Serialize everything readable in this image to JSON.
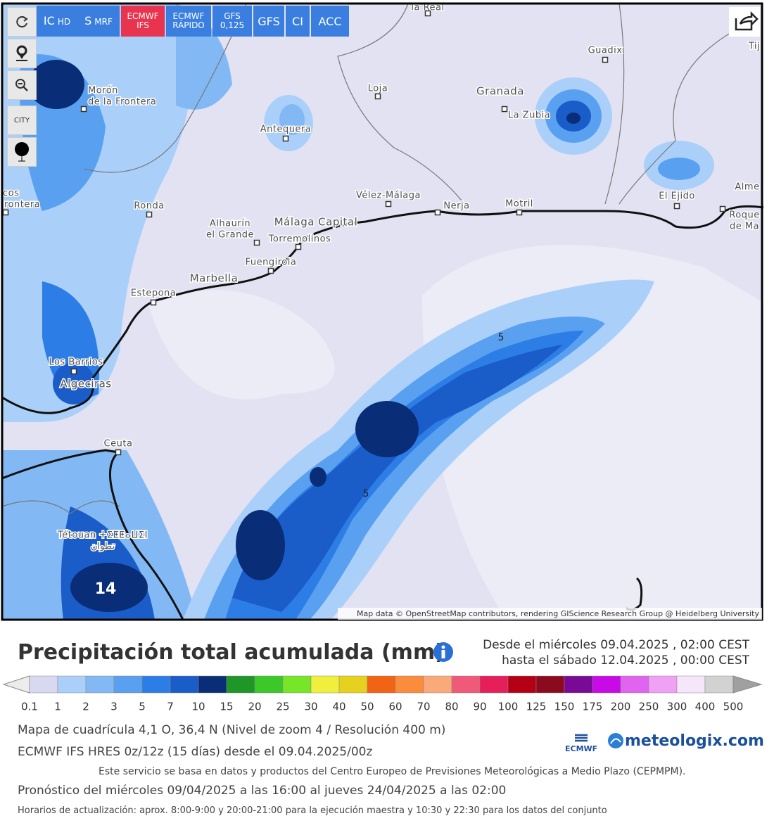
{
  "toolbar": [
    {
      "main": "IC",
      "sub": "HD"
    },
    {
      "main": "S",
      "sub": "MRF"
    },
    {
      "line1": "ECMWF",
      "line2": "IFS"
    },
    {
      "line1": "ECMWF",
      "line2": "RÁPIDO"
    },
    {
      "line1": "GFS",
      "line2": "0,125"
    },
    {
      "main": "GFS"
    },
    {
      "main": "CI"
    },
    {
      "main": "ACC"
    }
  ],
  "side_label": "CITY",
  "map": {
    "cities": [
      {
        "lines": [
          "la Real"
        ]
      },
      {
        "lines": [
          "Morón",
          "de la Frontera"
        ]
      },
      {
        "lines": [
          "Antequera"
        ]
      },
      {
        "lines": [
          "Loja"
        ]
      },
      {
        "lines": [
          "Granada"
        ]
      },
      {
        "lines": [
          "La Zubia"
        ]
      },
      {
        "lines": [
          "Guadix"
        ]
      },
      {
        "lines": [
          "Vélez-Málaga"
        ]
      },
      {
        "lines": [
          "Nerja"
        ]
      },
      {
        "lines": [
          "Motril"
        ]
      },
      {
        "lines": [
          "El Ejido"
        ]
      },
      {
        "lines": [
          "Ronda"
        ]
      },
      {
        "lines": [
          "Alhaurín",
          "el Grande"
        ]
      },
      {
        "lines": [
          "Málaga Capital"
        ]
      },
      {
        "lines": [
          "Torremolinos"
        ]
      },
      {
        "lines": [
          "Fuengirola"
        ]
      },
      {
        "lines": [
          "Marbella"
        ]
      },
      {
        "lines": [
          "Estepona"
        ]
      },
      {
        "lines": [
          "Los Barrios"
        ]
      },
      {
        "lines": [
          "Algeciras"
        ]
      },
      {
        "lines": [
          "Ceuta"
        ]
      },
      {
        "lines": [
          "Tétouan ⵜⵉⵟⵟⴰⵡⵉⵏ",
          "تطوان"
        ]
      },
      {
        "lines": [
          "Alme"
        ]
      },
      {
        "lines": [
          "Roque",
          "de Ma"
        ]
      },
      {
        "lines": [
          "Tij"
        ]
      },
      {
        "lines": [
          "cos",
          "rontera"
        ]
      }
    ],
    "values": [
      "5",
      "5",
      "14"
    ],
    "attribution": "Map data © OpenStreetMap contributors, rendering GIScience Research Group @ Heidelberg University"
  },
  "title": "Precipitación total acumulada (mm)",
  "period": [
    "Desde el miércoles 09.04.2025 , 02:00 CEST",
    "hasta el sábado 12.04.2025 , 00:00 CEST"
  ],
  "legend": {
    "labels": [
      "0.1",
      "1",
      "2",
      "3",
      "5",
      "7",
      "10",
      "15",
      "20",
      "25",
      "30",
      "40",
      "50",
      "60",
      "70",
      "80",
      "90",
      "100",
      "125",
      "150",
      "175",
      "200",
      "250",
      "300",
      "400",
      "500"
    ],
    "colors": [
      "#d8d8f0",
      "#aad0fa",
      "#82b9f5",
      "#5aa0f0",
      "#2d7de6",
      "#1a5cc8",
      "#0a2d78",
      "#1e9628",
      "#3cc828",
      "#78e628",
      "#f0f03c",
      "#e6d21e",
      "#f06414",
      "#fa8c3c",
      "#faaa78",
      "#f05a78",
      "#e61e5a",
      "#b40014",
      "#8c0a1e",
      "#780a96",
      "#c80ae6",
      "#e164f0",
      "#f0a0f5",
      "#f5e6fa",
      "#d2d2d2"
    ]
  },
  "info": [
    "Mapa de cuadrícula 4,1 O, 36,4 N (Nivel de zoom 4 / Resolución 400 m)",
    "ECMWF IFS HRES 0z/12z (15 días) desde el 09.04.2025/00z",
    "Este servicio se basa en datos y productos del Centro Europeo de Previsiones Meteorológicas a Medio Plazo (CEPMPM).",
    "Pronóstico del miércoles 09/04/2025 a las 16:00 al jueves 24/04/2025 a las 02:00",
    "Horarios de actualización: aprox. 8:00-9:00 y 20:00-21:00 para la ejecución maestra y 10:30 y 22:30 para los datos del conjunto"
  ],
  "logos": {
    "ecmwf": "ECMWF",
    "site": "meteologix.com"
  }
}
